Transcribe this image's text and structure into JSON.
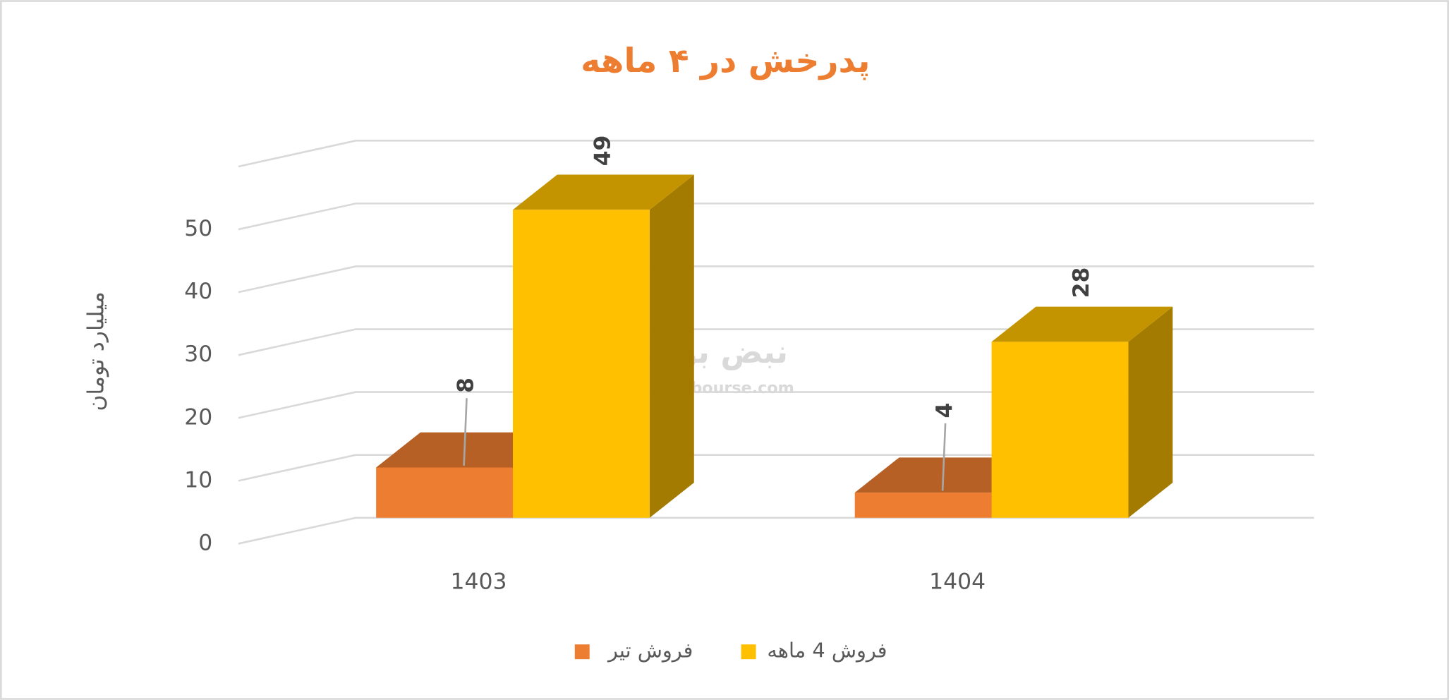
{
  "chart_data": {
    "type": "bar3d",
    "title": "پدرخش در ۴ ماهه",
    "y_axis_label": "میلیارد تومان",
    "categories": [
      "1403",
      "1404"
    ],
    "series": [
      {
        "name": "فروش تیر",
        "color": "#ED7D31",
        "values": [
          8,
          4
        ]
      },
      {
        "name": "فروش 4  ماهه",
        "color": "#FFC000",
        "values": [
          49,
          28
        ]
      }
    ],
    "ylim": [
      0,
      60
    ],
    "yticks": [
      0,
      10,
      20,
      30,
      40,
      50
    ],
    "grid": true,
    "legend": "bottom",
    "watermark": {
      "text": "نبض بورس",
      "url": "nabzebourse.com"
    }
  }
}
